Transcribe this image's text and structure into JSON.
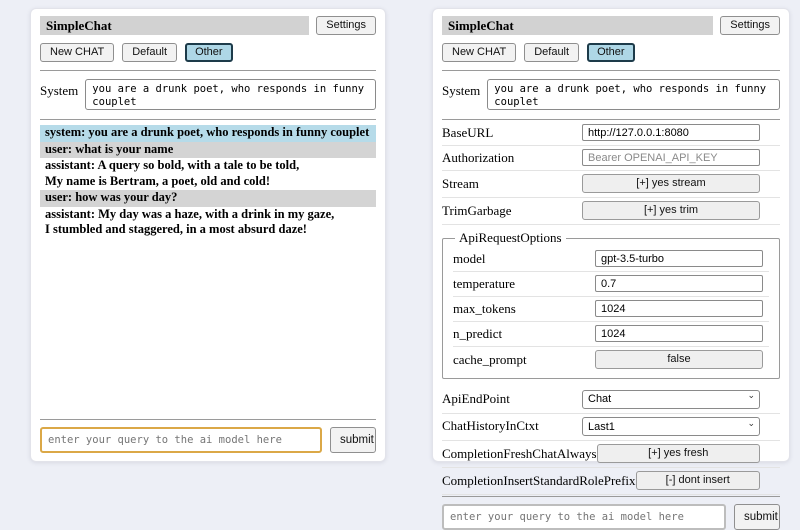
{
  "header": {
    "title": "SimpleChat",
    "settings_label": "Settings"
  },
  "sessions": {
    "new_chat_label": "New CHAT",
    "default_label": "Default",
    "other_label": "Other",
    "active": "Other"
  },
  "system": {
    "label": "System",
    "value": "you are a drunk poet, who responds in funny couplet"
  },
  "chat": {
    "messages": [
      {
        "role": "system",
        "text": "system: you are a drunk poet, who responds in funny couplet"
      },
      {
        "role": "user",
        "text": "user: what is your name"
      },
      {
        "role": "assistant",
        "text": "assistant: A query so bold, with a tale to be told,\nMy name is Bertram, a poet, old and cold!"
      },
      {
        "role": "user",
        "text": "user: how was your day?"
      },
      {
        "role": "assistant",
        "text": "assistant: My day was a haze, with a drink in my gaze,\nI stumbled and staggered, in a most absurd daze!"
      }
    ]
  },
  "settings": {
    "base_url": {
      "label": "BaseURL",
      "value": "http://127.0.0.1:8080"
    },
    "authorization": {
      "label": "Authorization",
      "placeholder": "Bearer OPENAI_API_KEY"
    },
    "stream": {
      "label": "Stream",
      "button": "[+] yes stream"
    },
    "trim_garbage": {
      "label": "TrimGarbage",
      "button": "[+] yes trim"
    },
    "api_request_options": {
      "legend": "ApiRequestOptions",
      "model": {
        "label": "model",
        "value": "gpt-3.5-turbo"
      },
      "temperature": {
        "label": "temperature",
        "value": "0.7"
      },
      "max_tokens": {
        "label": "max_tokens",
        "value": "1024"
      },
      "n_predict": {
        "label": "n_predict",
        "value": "1024"
      },
      "cache_prompt": {
        "label": "cache_prompt",
        "button": "false"
      }
    },
    "api_endpoint": {
      "label": "ApiEndPoint",
      "selected": "Chat"
    },
    "chat_history_in_ctxt": {
      "label": "ChatHistoryInCtxt",
      "selected": "Last1"
    },
    "completion_fresh_chat_always": {
      "label": "CompletionFreshChatAlways",
      "button": "[+] yes fresh"
    },
    "completion_insert_standard_role_prefix": {
      "label": "CompletionInsertStandardRolePrefix",
      "button": "[-] dont insert"
    }
  },
  "query": {
    "placeholder": "enter your query to the ai model here",
    "submit_label": "submit"
  },
  "icons": {
    "chevron_down": "⌄"
  },
  "colors": {
    "page_bg": "#edeff6",
    "titlebar_bg": "#d2d2d2",
    "active_session_bg": "#aed7e6",
    "system_msg_bg": "#b6dbe9",
    "user_msg_bg": "#d4d4d4",
    "query_focus_border": "#dba847"
  }
}
